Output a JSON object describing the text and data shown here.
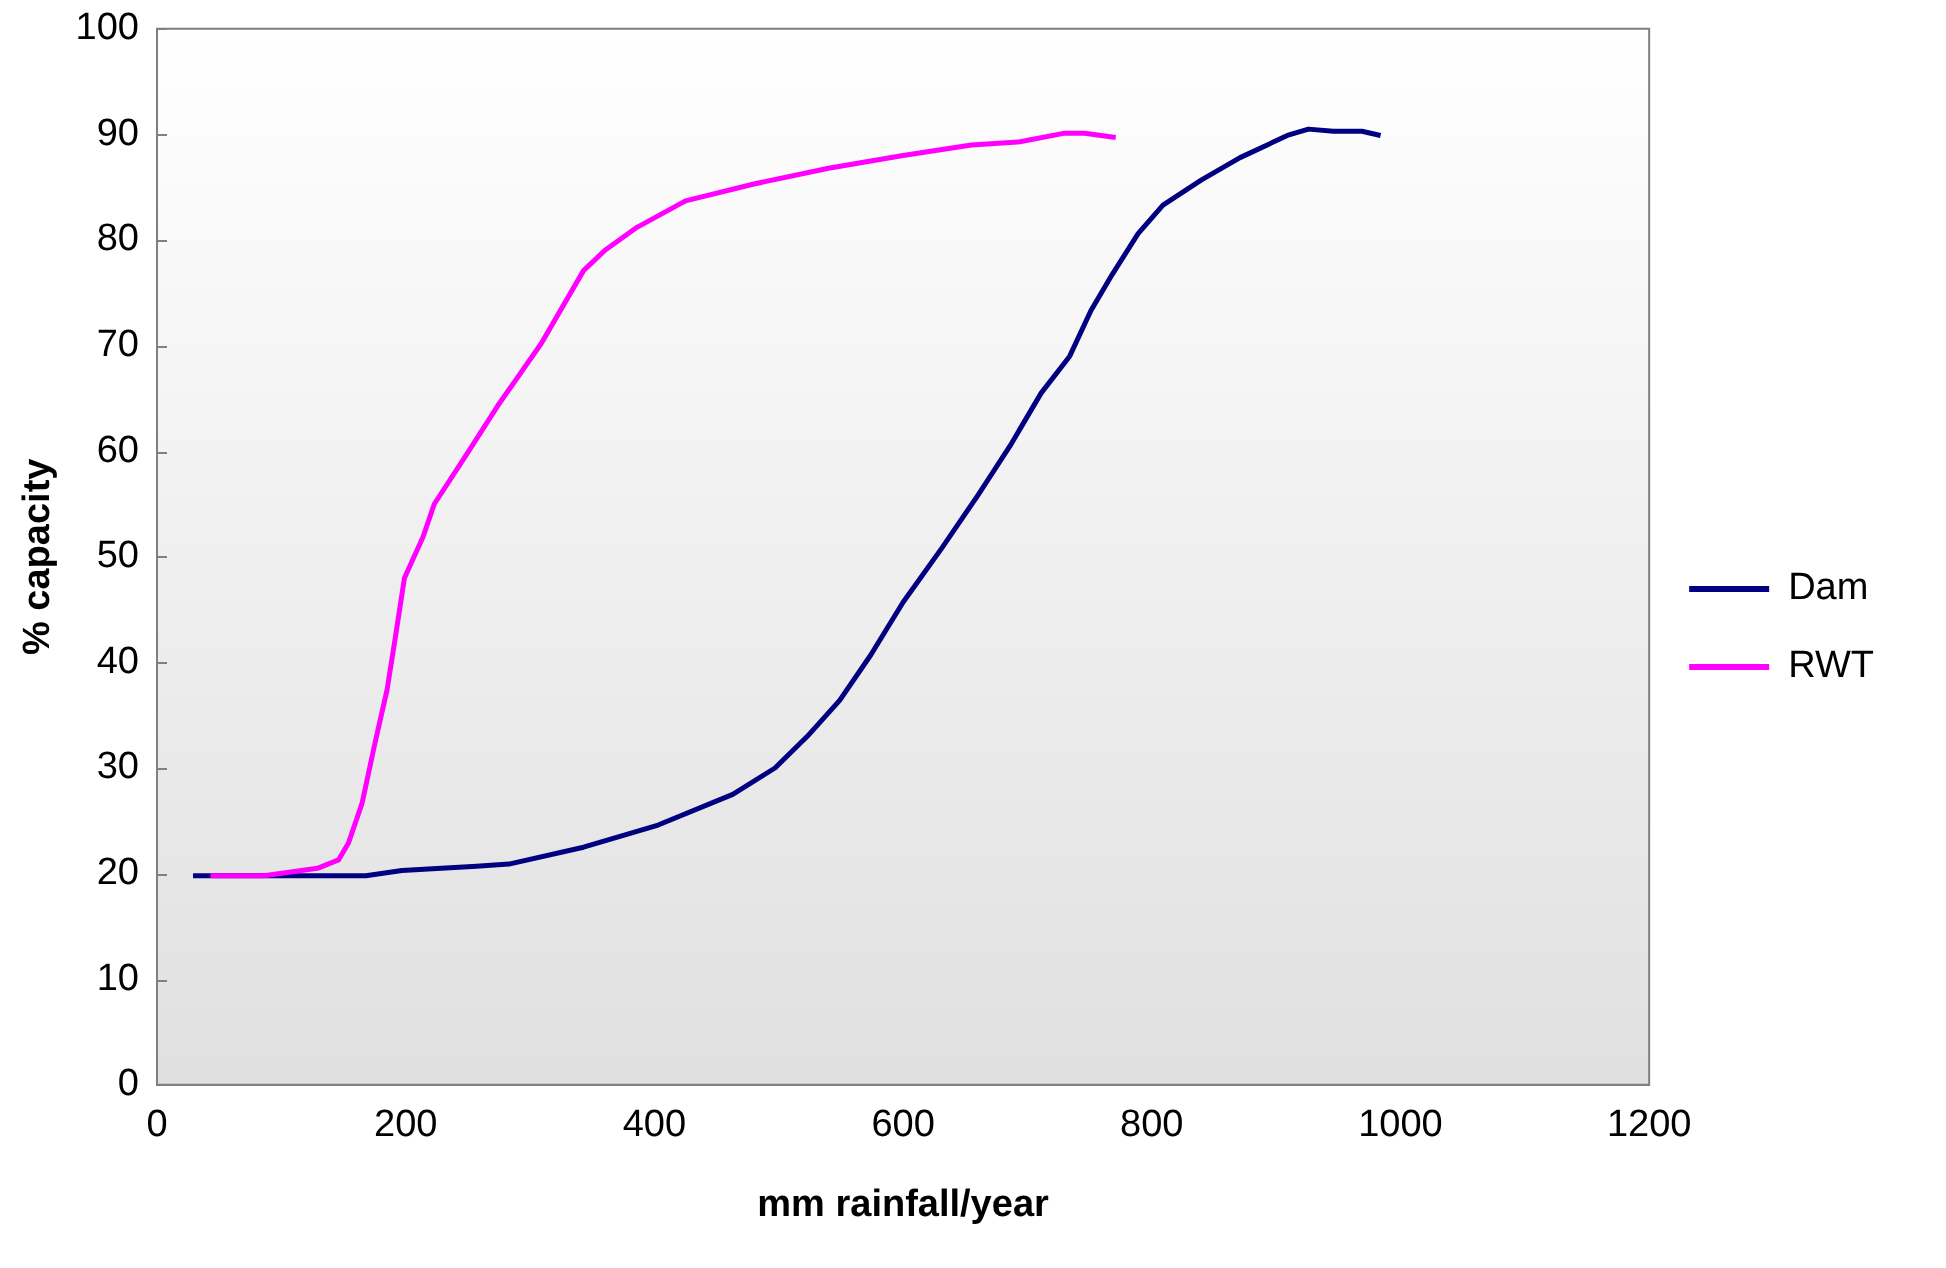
{
  "chart_data": {
    "type": "line",
    "xlabel": "mm rainfall/year",
    "ylabel": "% capacity",
    "xlim": [
      0,
      1200
    ],
    "xticks": [
      0,
      200,
      400,
      600,
      800,
      1000,
      1200
    ],
    "ylim": [
      0,
      100
    ],
    "yticks": [
      0,
      10,
      20,
      30,
      40,
      50,
      60,
      70,
      80,
      90,
      100
    ],
    "grid": false,
    "legend": "right",
    "marker": "none",
    "line_style": "solid",
    "series": [
      {
        "name": "Dam",
        "color": "#000080",
        "x": [
          29,
          168,
          197,
          257,
          283,
          343,
          403,
          463,
          497,
          523,
          549,
          574,
          600,
          631,
          660,
          686,
          711,
          734,
          751,
          768,
          789,
          809,
          840,
          871,
          909,
          926,
          946,
          969,
          984
        ],
        "values": [
          19.8,
          19.8,
          20.3,
          20.7,
          20.9,
          22.5,
          24.6,
          27.5,
          30,
          33,
          36.4,
          40.7,
          45.7,
          50.8,
          55.8,
          60.5,
          65.5,
          69,
          73.3,
          76.7,
          80.6,
          83.3,
          85.7,
          87.8,
          89.9,
          90.5,
          90.3,
          90.3,
          89.9
        ]
      },
      {
        "name": "RWT",
        "color": "#ff00ff",
        "x": [
          43,
          86,
          129,
          146,
          154,
          165,
          175,
          185,
          192,
          199,
          214,
          223,
          249,
          274,
          309,
          343,
          360,
          386,
          425,
          480,
          540,
          600,
          655,
          694,
          729,
          746,
          771
        ],
        "values": [
          19.8,
          19.8,
          20.5,
          21.3,
          22.9,
          26.7,
          32.2,
          37.4,
          42.6,
          48,
          51.9,
          55,
          59.7,
          64.3,
          70.2,
          77.1,
          79,
          81.2,
          83.7,
          85.3,
          86.8,
          88,
          89,
          89.3,
          90.1,
          90.1,
          89.7
        ]
      }
    ]
  }
}
